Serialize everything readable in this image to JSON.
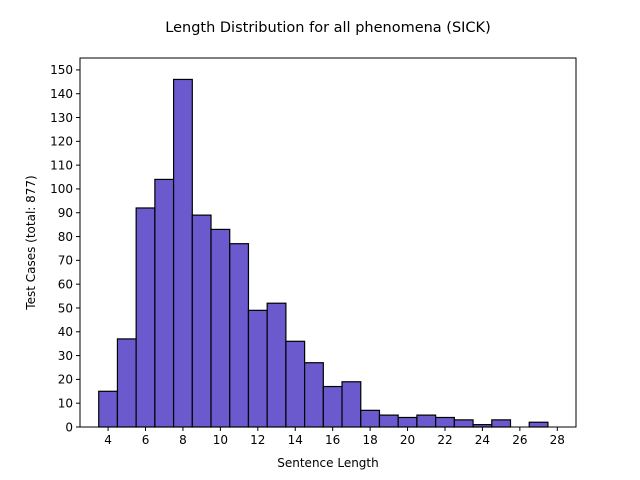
{
  "chart_data": {
    "type": "bar",
    "title": "Length Distribution for all phenomena (SICK)",
    "xlabel": "Sentence Length",
    "ylabel": "Test Cases (total: 877)",
    "bin_width": 1,
    "bins": [
      {
        "x": 4,
        "count": 15
      },
      {
        "x": 5,
        "count": 37
      },
      {
        "x": 6,
        "count": 92
      },
      {
        "x": 7,
        "count": 104
      },
      {
        "x": 8,
        "count": 146
      },
      {
        "x": 9,
        "count": 89
      },
      {
        "x": 10,
        "count": 83
      },
      {
        "x": 11,
        "count": 77
      },
      {
        "x": 12,
        "count": 49
      },
      {
        "x": 13,
        "count": 52
      },
      {
        "x": 14,
        "count": 36
      },
      {
        "x": 15,
        "count": 27
      },
      {
        "x": 16,
        "count": 17
      },
      {
        "x": 17,
        "count": 19
      },
      {
        "x": 18,
        "count": 7
      },
      {
        "x": 19,
        "count": 5
      },
      {
        "x": 20,
        "count": 4
      },
      {
        "x": 21,
        "count": 5
      },
      {
        "x": 22,
        "count": 4
      },
      {
        "x": 23,
        "count": 3
      },
      {
        "x": 24,
        "count": 1
      },
      {
        "x": 25,
        "count": 3
      },
      {
        "x": 27,
        "count": 2
      }
    ],
    "xlim": [
      2.5,
      29.0
    ],
    "ylim": [
      0,
      155
    ],
    "xticks": [
      4,
      6,
      8,
      10,
      12,
      14,
      16,
      18,
      20,
      22,
      24,
      26,
      28
    ],
    "yticks": [
      0,
      10,
      20,
      30,
      40,
      50,
      60,
      70,
      80,
      90,
      100,
      110,
      120,
      130,
      140,
      150
    ],
    "bar_color": "#6a5acd",
    "edge_color": "#000000",
    "grid": false,
    "legend": "none"
  }
}
